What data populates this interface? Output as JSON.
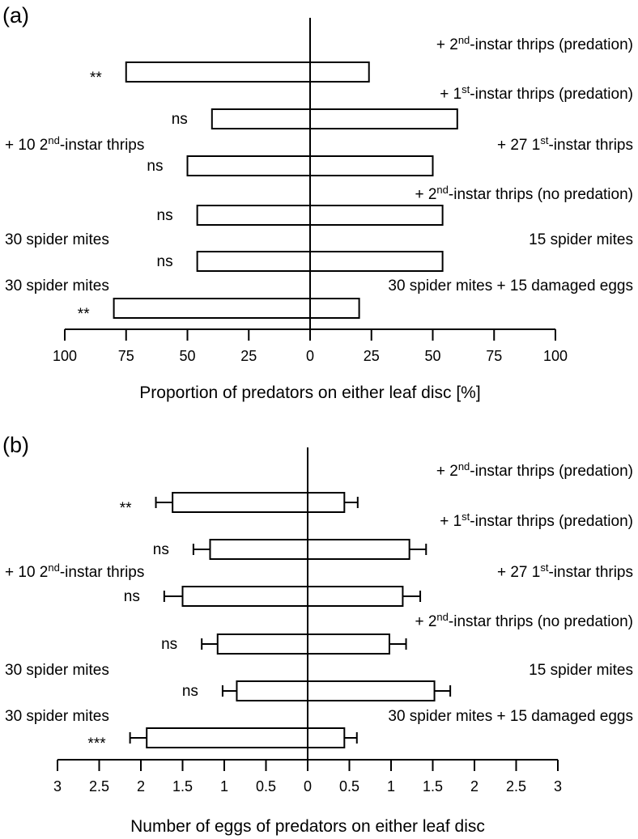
{
  "chart_data": [
    {
      "type": "bar",
      "orientation": "horizontal-diverging",
      "panel_label": "(a)",
      "xlabel": "Proportion of predators on either leaf disc [%]",
      "xlim": [
        -100,
        100
      ],
      "tick_values": [
        -100,
        -75,
        -50,
        -25,
        0,
        25,
        50,
        75,
        100
      ],
      "tick_labels": [
        "100",
        "75",
        "50",
        "25",
        "0",
        "25",
        "50",
        "75",
        "100"
      ],
      "rows": [
        {
          "left": 75,
          "right": 24,
          "sig": "**",
          "right_label": {
            "pre": "+ 2",
            "sup": "nd",
            "post": "-instar thrips (predation)"
          },
          "left_label": null
        },
        {
          "left": 40,
          "right": 60,
          "sig": "ns",
          "right_label": {
            "pre": "+ 1",
            "sup": "st",
            "post": "-instar thrips (predation)"
          },
          "left_label": null
        },
        {
          "left": 50,
          "right": 50,
          "sig": "ns",
          "right_label": {
            "pre": "+ 27 1",
            "sup": "st",
            "post": "-instar thrips"
          },
          "left_label": {
            "pre": "+ 10 2",
            "sup": "nd",
            "post": "-instar thrips"
          }
        },
        {
          "left": 46,
          "right": 54,
          "sig": "ns",
          "right_label": {
            "pre": "+ 2",
            "sup": "nd",
            "post": "-instar thrips (no predation)"
          },
          "left_label": null
        },
        {
          "left": 46,
          "right": 54,
          "sig": "ns",
          "right_label": {
            "pre": "15 spider mites",
            "sup": "",
            "post": ""
          },
          "left_label": {
            "pre": "30 spider mites",
            "sup": "",
            "post": ""
          }
        },
        {
          "left": 80,
          "right": 20,
          "sig": "**",
          "right_label": {
            "pre": "30 spider mites + 15 damaged eggs",
            "sup": "",
            "post": ""
          },
          "left_label": {
            "pre": "30 spider mites",
            "sup": "",
            "post": ""
          }
        }
      ]
    },
    {
      "type": "bar",
      "orientation": "horizontal-diverging",
      "panel_label": "(b)",
      "xlabel": "Number of eggs of predators on either leaf disc",
      "xlim": [
        -3,
        3
      ],
      "tick_values": [
        -3,
        -2.5,
        -2,
        -1.5,
        -1,
        -0.5,
        0,
        0.5,
        1,
        1.5,
        2,
        2.5,
        3
      ],
      "tick_labels": [
        "3",
        "2.5",
        "2",
        "1.5",
        "1",
        "0.5",
        "0",
        "0.5",
        "1",
        "1.5",
        "2",
        "2.5",
        "3"
      ],
      "rows": [
        {
          "left": 1.62,
          "left_err": 0.2,
          "right": 0.44,
          "right_err": 0.16,
          "sig": "**",
          "right_label": {
            "pre": "+ 2",
            "sup": "nd",
            "post": "-instar thrips (predation)"
          },
          "left_label": null
        },
        {
          "left": 1.17,
          "left_err": 0.2,
          "right": 1.22,
          "right_err": 0.2,
          "sig": "ns",
          "right_label": {
            "pre": "+ 1",
            "sup": "st",
            "post": "-instar thrips (predation)"
          },
          "left_label": null
        },
        {
          "left": 1.5,
          "left_err": 0.22,
          "right": 1.14,
          "right_err": 0.21,
          "sig": "ns",
          "right_label": {
            "pre": "+ 27 1",
            "sup": "st",
            "post": "-instar thrips"
          },
          "left_label": {
            "pre": "+ 10 2",
            "sup": "nd",
            "post": "-instar thrips"
          }
        },
        {
          "left": 1.08,
          "left_err": 0.19,
          "right": 0.98,
          "right_err": 0.2,
          "sig": "ns",
          "right_label": {
            "pre": "+ 2",
            "sup": "nd",
            "post": "-instar thrips (no predation)"
          },
          "left_label": null
        },
        {
          "left": 0.85,
          "left_err": 0.17,
          "right": 1.52,
          "right_err": 0.19,
          "sig": "ns",
          "right_label": {
            "pre": "15 spider mites",
            "sup": "",
            "post": ""
          },
          "left_label": {
            "pre": "30 spider mites",
            "sup": "",
            "post": ""
          }
        },
        {
          "left": 1.93,
          "left_err": 0.2,
          "right": 0.44,
          "right_err": 0.15,
          "sig": "***",
          "right_label": {
            "pre": "30 spider mites + 15 damaged eggs",
            "sup": "",
            "post": ""
          },
          "left_label": {
            "pre": "30 spider mites",
            "sup": "",
            "post": ""
          }
        }
      ]
    }
  ]
}
